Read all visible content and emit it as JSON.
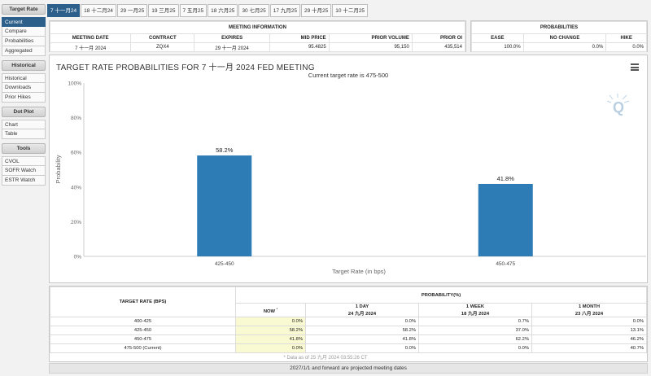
{
  "sidebar": {
    "target_rate": {
      "title": "Target Rate",
      "items": [
        "Current",
        "Compare",
        "Probabilities",
        "Aggregated"
      ]
    },
    "historical": {
      "title": "Historical",
      "items": [
        "Historical",
        "Downloads",
        "Prior Hikes"
      ]
    },
    "dot_plot": {
      "title": "Dot Plot",
      "items": [
        "Chart",
        "Table"
      ]
    },
    "tools": {
      "title": "Tools",
      "items": [
        "CVOL",
        "SOFR Watch",
        "ESTR Watch"
      ]
    }
  },
  "tabs": [
    "7 十一月24",
    "18 十二月24",
    "29 一月25",
    "19 三月25",
    "7 五月25",
    "18 六月25",
    "30 七月25",
    "17 九月25",
    "29 十月25",
    "10 十二月25"
  ],
  "meeting_info": {
    "title": "MEETING INFORMATION",
    "headers": [
      "MEETING DATE",
      "CONTRACT",
      "EXPIRES",
      "MID PRICE",
      "PRIOR VOLUME",
      "PRIOR OI"
    ],
    "values": [
      "7 十一月 2024",
      "ZQX4",
      "29 十一月 2024",
      "95.4825",
      "95,150",
      "435,514"
    ]
  },
  "probabilities": {
    "title": "PROBABILITIES",
    "headers": [
      "EASE",
      "NO CHANGE",
      "HIKE"
    ],
    "values": [
      "100.0%",
      "0.0%",
      "0.0%"
    ]
  },
  "chart": {
    "title": "TARGET RATE PROBABILITIES FOR 7 十一月 2024 FED MEETING",
    "subtitle": "Current target rate is 475-500",
    "menu_icon": "hamburger-menu-icon",
    "logo_icon": "q-logo-icon"
  },
  "chart_data": {
    "type": "bar",
    "categories": [
      "425-450",
      "450-475"
    ],
    "values": [
      58.2,
      41.8
    ],
    "data_labels": [
      "58.2%",
      "41.8%"
    ],
    "xlabel": "Target Rate (in bps)",
    "ylabel": "Probability",
    "ylim": [
      0,
      100
    ],
    "yticks": [
      "0%",
      "20%",
      "40%",
      "60%",
      "80%",
      "100%"
    ],
    "bar_color": "#2d7cb6",
    "grid": false
  },
  "prob_table": {
    "col1_header": "TARGET RATE (BPS)",
    "group_header": "PROBABILITY(%)",
    "now": {
      "label": "NOW",
      "marker": "*"
    },
    "sub": [
      {
        "label": "1 DAY",
        "date": "24 九月 2024"
      },
      {
        "label": "1 WEEK",
        "date": "18 九月 2024"
      },
      {
        "label": "1 MONTH",
        "date": "23 八月 2024"
      }
    ],
    "rows": [
      {
        "rate": "400-425",
        "now": "0.0%",
        "day": "0.0%",
        "week": "0.7%",
        "month": "0.0%"
      },
      {
        "rate": "425-450",
        "now": "58.2%",
        "day": "58.2%",
        "week": "37.0%",
        "month": "13.1%"
      },
      {
        "rate": "450-475",
        "now": "41.8%",
        "day": "41.8%",
        "week": "62.2%",
        "month": "46.2%"
      },
      {
        "rate": "475-500 (Current)",
        "now": "0.0%",
        "day": "0.0%",
        "week": "0.0%",
        "month": "40.7%"
      }
    ],
    "note": "* Data as of 25 九月 2024 03:55:26 CT"
  },
  "footer": "2027/1/1 and forward are projected meeting dates"
}
